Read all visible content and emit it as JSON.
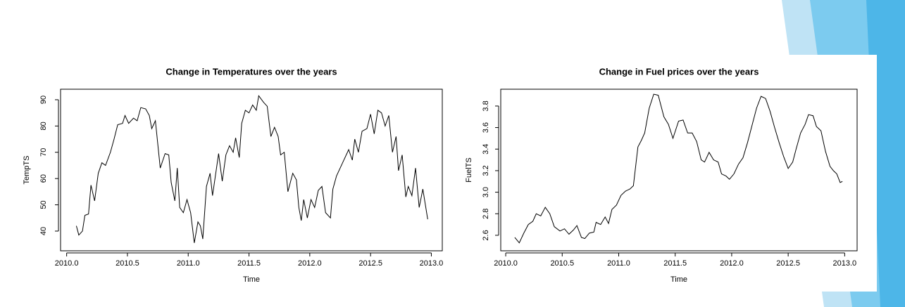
{
  "chart_data": [
    {
      "type": "line",
      "title": "Change in Temperatures over the years",
      "x_label": "Time",
      "y_label": "TempTS",
      "x": [
        2010.08,
        2010.1,
        2010.13,
        2010.15,
        2010.18,
        2010.2,
        2010.23,
        2010.26,
        2010.29,
        2010.32,
        2010.36,
        2010.39,
        2010.42,
        2010.46,
        2010.48,
        2010.51,
        2010.55,
        2010.58,
        2010.61,
        2010.65,
        2010.68,
        2010.7,
        2010.73,
        2010.77,
        2010.81,
        2010.84,
        2010.86,
        2010.89,
        2010.91,
        2010.93,
        2010.96,
        2010.99,
        2011.02,
        2011.05,
        2011.08,
        2011.1,
        2011.12,
        2011.15,
        2011.18,
        2011.2,
        2011.25,
        2011.28,
        2011.31,
        2011.34,
        2011.37,
        2011.39,
        2011.42,
        2011.44,
        2011.47,
        2011.5,
        2011.53,
        2011.56,
        2011.58,
        2011.62,
        2011.65,
        2011.68,
        2011.71,
        2011.74,
        2011.76,
        2011.79,
        2011.82,
        2011.86,
        2011.89,
        2011.91,
        2011.93,
        2011.95,
        2011.98,
        2012.01,
        2012.04,
        2012.07,
        2012.1,
        2012.13,
        2012.17,
        2012.19,
        2012.22,
        2012.25,
        2012.28,
        2012.32,
        2012.35,
        2012.37,
        2012.4,
        2012.43,
        2012.47,
        2012.5,
        2012.53,
        2012.56,
        2012.59,
        2012.62,
        2012.65,
        2012.68,
        2012.71,
        2012.73,
        2012.76,
        2012.79,
        2012.81,
        2012.84,
        2012.87,
        2012.9,
        2012.93,
        2012.97
      ],
      "series": [
        {
          "color": "#000000",
          "values": [
            42,
            38.5,
            40,
            46,
            46.5,
            57.5,
            51.5,
            62,
            66,
            65,
            70,
            75,
            80.5,
            81,
            84,
            81,
            83,
            82,
            87,
            86.5,
            84,
            79,
            82,
            64,
            69.5,
            69,
            58.5,
            51.5,
            64,
            49,
            47,
            52,
            47,
            35.5,
            43.5,
            42,
            37,
            57,
            62,
            53.5,
            69.5,
            59,
            69,
            72.5,
            70,
            75.5,
            68,
            81,
            86,
            85,
            88,
            86,
            91.5,
            89,
            87.5,
            76,
            79.5,
            76,
            69,
            70,
            55,
            62,
            59.5,
            49,
            44,
            52,
            45,
            52,
            49,
            55.5,
            57,
            47,
            45,
            56,
            61,
            64,
            67,
            71,
            67,
            75,
            70,
            78,
            79,
            84.5,
            77,
            86,
            85,
            80,
            84,
            70,
            76,
            63,
            69,
            53,
            57,
            53.5,
            64,
            49,
            56,
            44.5
          ]
        }
      ],
      "xlim": [
        2009.95,
        2013.09
      ],
      "ylim": [
        32.5,
        94
      ],
      "xticks": [
        {
          "value": 2010,
          "label": "2010.0"
        },
        2010.5,
        {
          "value": 2011,
          "label": "2011.0"
        },
        2011.5,
        {
          "value": 2012,
          "label": "2012.0"
        },
        2012.5,
        {
          "value": 2013,
          "label": "2013.0"
        }
      ],
      "yticks": [
        40,
        50,
        60,
        70,
        80,
        90
      ]
    },
    {
      "type": "line",
      "title": "Change in Fuel prices over the years",
      "x_label": "Time",
      "y_label": "FuelTS",
      "x": [
        2010.08,
        2010.12,
        2010.16,
        2010.2,
        2010.24,
        2010.27,
        2010.31,
        2010.35,
        2010.39,
        2010.43,
        2010.48,
        2010.52,
        2010.56,
        2010.6,
        2010.63,
        2010.67,
        2010.7,
        2010.74,
        2010.78,
        2010.8,
        2010.84,
        2010.88,
        2010.91,
        2010.94,
        2010.98,
        2011.02,
        2011.06,
        2011.1,
        2011.13,
        2011.17,
        2011.2,
        2011.23,
        2011.27,
        2011.31,
        2011.35,
        2011.4,
        2011.44,
        2011.48,
        2011.53,
        2011.57,
        2011.61,
        2011.65,
        2011.69,
        2011.73,
        2011.76,
        2011.8,
        2011.84,
        2011.88,
        2011.91,
        2011.95,
        2011.98,
        2012.02,
        2012.06,
        2012.1,
        2012.14,
        2012.18,
        2012.22,
        2012.26,
        2012.3,
        2012.34,
        2012.38,
        2012.42,
        2012.46,
        2012.5,
        2012.54,
        2012.57,
        2012.61,
        2012.65,
        2012.68,
        2012.72,
        2012.75,
        2012.79,
        2012.83,
        2012.87,
        2012.9,
        2012.93,
        2012.96,
        2012.98
      ],
      "series": [
        {
          "color": "#000000",
          "values": [
            2.58,
            2.53,
            2.62,
            2.7,
            2.73,
            2.8,
            2.78,
            2.86,
            2.8,
            2.68,
            2.64,
            2.66,
            2.61,
            2.65,
            2.69,
            2.58,
            2.57,
            2.62,
            2.63,
            2.72,
            2.7,
            2.77,
            2.71,
            2.84,
            2.88,
            2.97,
            3.01,
            3.03,
            3.06,
            3.42,
            3.48,
            3.55,
            3.78,
            3.91,
            3.9,
            3.7,
            3.63,
            3.5,
            3.66,
            3.67,
            3.55,
            3.55,
            3.47,
            3.3,
            3.28,
            3.37,
            3.3,
            3.28,
            3.17,
            3.15,
            3.12,
            3.17,
            3.26,
            3.32,
            3.46,
            3.62,
            3.78,
            3.89,
            3.87,
            3.75,
            3.6,
            3.46,
            3.33,
            3.22,
            3.28,
            3.4,
            3.55,
            3.63,
            3.72,
            3.71,
            3.61,
            3.57,
            3.38,
            3.24,
            3.2,
            3.17,
            3.09,
            3.1
          ]
        }
      ],
      "xlim": [
        2009.956,
        2013.11
      ],
      "ylim": [
        2.456,
        3.956
      ],
      "xticks": [
        {
          "value": 2010,
          "label": "2010.0"
        },
        2010.5,
        {
          "value": 2011,
          "label": "2011.0"
        },
        2011.5,
        {
          "value": 2012,
          "label": "2012.0"
        },
        2012.5,
        {
          "value": 2013,
          "label": "2013.0"
        }
      ],
      "yticks": [
        2.6,
        2.8,
        {
          "value": 3,
          "label": "3.0"
        },
        3.2,
        3.4,
        3.6,
        3.8
      ]
    }
  ]
}
